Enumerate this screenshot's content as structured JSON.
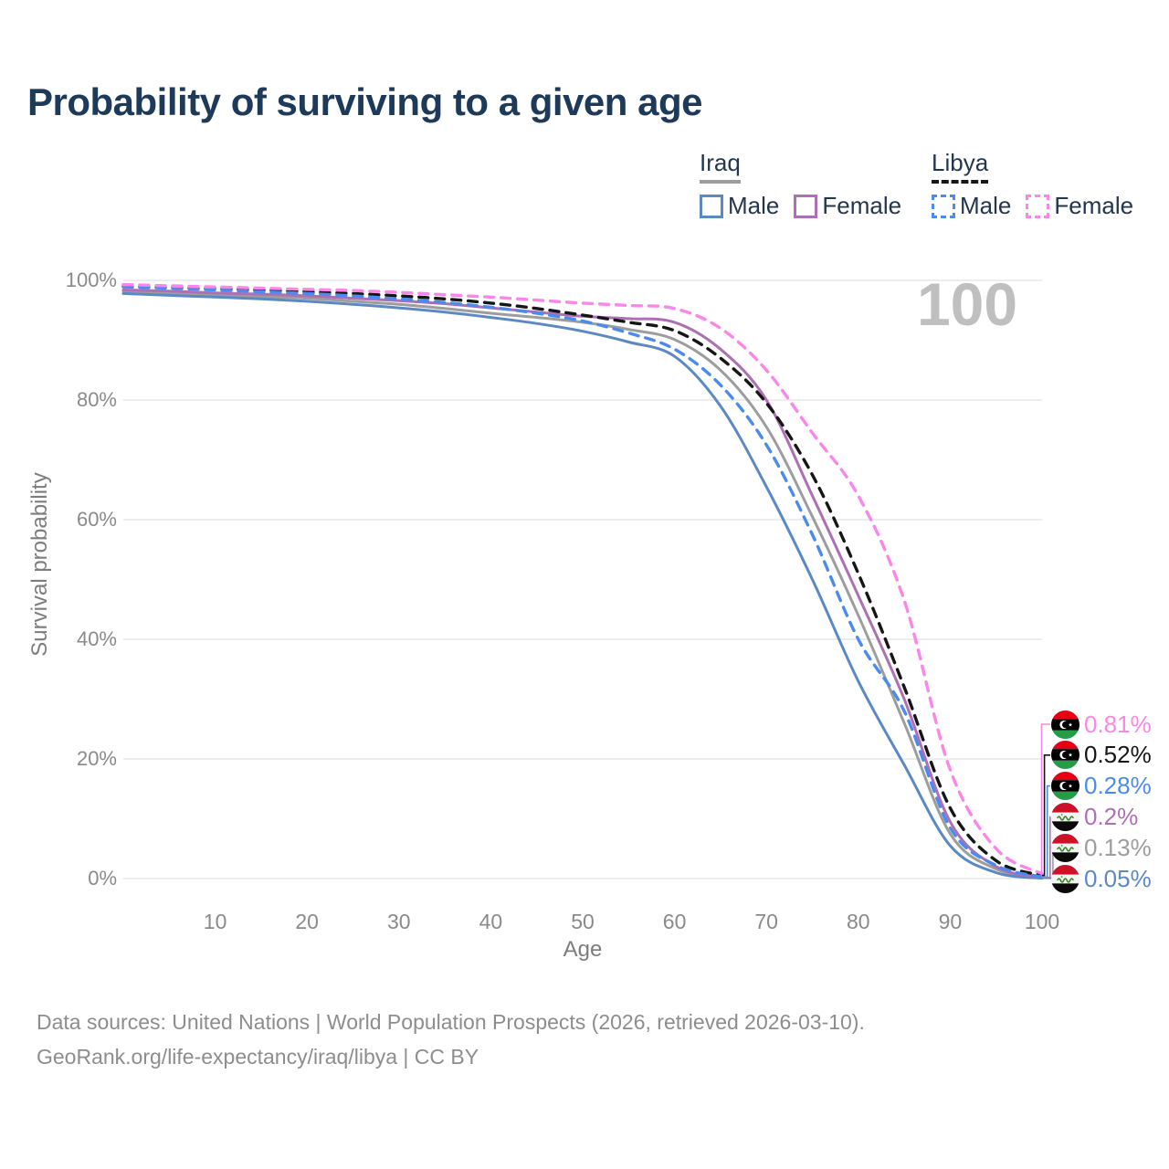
{
  "title": "Probability of surviving to a given age",
  "watermark": "100",
  "legend": {
    "groups": [
      {
        "country": "Iraq",
        "underline_style": "solid",
        "underline_color": "#9d9d9d",
        "items": [
          {
            "label": "Male",
            "color": "#5b89c4",
            "style": "solid"
          },
          {
            "label": "Female",
            "color": "#ae6fb4",
            "style": "solid"
          }
        ]
      },
      {
        "country": "Libya",
        "underline_style": "dashed",
        "underline_color": "#161616",
        "items": [
          {
            "label": "Male",
            "color": "#4b8bf0",
            "style": "dashed"
          },
          {
            "label": "Female",
            "color": "#fb86e9",
            "style": "dashed"
          }
        ]
      }
    ]
  },
  "y_axis": {
    "label": "Survival probability",
    "tick_values": [
      0,
      20,
      40,
      60,
      80,
      100
    ],
    "tick_labels": [
      "0%",
      "20%",
      "40%",
      "60%",
      "80%",
      "100%"
    ]
  },
  "x_axis": {
    "label": "Age",
    "tick_values": [
      10,
      20,
      30,
      40,
      50,
      60,
      70,
      80,
      90,
      100
    ],
    "tick_labels": [
      "10",
      "20",
      "30",
      "40",
      "50",
      "60",
      "70",
      "80",
      "90",
      "100"
    ]
  },
  "end_labels": [
    {
      "value": "0.81%",
      "flag": "libya",
      "color": "#fb86e9",
      "series": "Libya Female"
    },
    {
      "value": "0.52%",
      "flag": "libya",
      "color": "#161616",
      "series": "Libya Both sexes"
    },
    {
      "value": "0.28%",
      "flag": "libya",
      "color": "#4b8bf0",
      "series": "Libya Male"
    },
    {
      "value": "0.2%",
      "flag": "iraq",
      "color": "#ae6fb4",
      "series": "Iraq Female"
    },
    {
      "value": "0.13%",
      "flag": "iraq",
      "color": "#9d9d9d",
      "series": "Iraq Both sexes"
    },
    {
      "value": "0.05%",
      "flag": "iraq",
      "color": "#5b89c4",
      "series": "Iraq Male"
    }
  ],
  "footer": {
    "line1": "Data sources: United Nations | World Population Prospects (2026, retrieved 2026-03-10).",
    "line2": "GeoRank.org/life-expectancy/iraq/libya | CC BY"
  },
  "chart_data": {
    "type": "line",
    "title": "Probability of surviving to a given age",
    "xlabel": "Age",
    "ylabel": "Survival probability",
    "xlim": [
      0,
      100
    ],
    "ylim": [
      0,
      100
    ],
    "grid": "horizontal",
    "legend_position": "top-right",
    "x": [
      0,
      5,
      10,
      15,
      20,
      25,
      30,
      35,
      40,
      45,
      50,
      55,
      60,
      65,
      70,
      75,
      80,
      85,
      90,
      95,
      100
    ],
    "series": [
      {
        "name": "Iraq Both sexes",
        "color": "#9d9d9d",
        "dash": "solid",
        "end_label": "0.13%",
        "values": [
          98.1,
          97.9,
          97.6,
          97.3,
          97.0,
          96.5,
          96.0,
          95.3,
          94.5,
          93.8,
          93.0,
          91.8,
          90.1,
          85.0,
          75.5,
          60.5,
          44.0,
          26.0,
          7.5,
          1.6,
          0.13
        ]
      },
      {
        "name": "Iraq Male",
        "color": "#5b89c4",
        "dash": "solid",
        "end_label": "0.05%",
        "values": [
          97.8,
          97.5,
          97.2,
          96.9,
          96.5,
          96.0,
          95.4,
          94.7,
          93.8,
          92.8,
          91.5,
          89.7,
          87.3,
          79.0,
          65.5,
          50.0,
          33.0,
          19.0,
          5.5,
          1.0,
          0.05
        ]
      },
      {
        "name": "Iraq Female",
        "color": "#ae6fb4",
        "dash": "solid",
        "end_label": "0.2%",
        "values": [
          98.4,
          98.2,
          97.9,
          97.7,
          97.4,
          97.0,
          96.6,
          96.1,
          95.4,
          94.7,
          94.0,
          93.6,
          93.0,
          88.5,
          80.0,
          64.0,
          47.3,
          30.0,
          9.5,
          2.0,
          0.2
        ]
      },
      {
        "name": "Libya Both sexes",
        "color": "#161616",
        "dash": "dashed",
        "end_label": "0.52%",
        "values": [
          99.0,
          98.8,
          98.6,
          98.4,
          98.1,
          97.8,
          97.4,
          96.9,
          96.2,
          95.3,
          94.2,
          93.0,
          91.6,
          87.0,
          79.5,
          67.5,
          51.0,
          32.0,
          11.8,
          3.0,
          0.52
        ]
      },
      {
        "name": "Libya Male",
        "color": "#4b8bf0",
        "dash": "dashed",
        "end_label": "0.28%",
        "values": [
          98.9,
          98.7,
          98.4,
          98.1,
          97.8,
          97.4,
          96.9,
          96.3,
          95.5,
          94.5,
          93.2,
          91.2,
          88.5,
          82.5,
          72.5,
          57.5,
          40.0,
          28.0,
          8.5,
          2.2,
          0.28
        ]
      },
      {
        "name": "Libya Female",
        "color": "#fb86e9",
        "dash": "dashed",
        "end_label": "0.81%",
        "values": [
          99.3,
          99.1,
          98.9,
          98.7,
          98.5,
          98.3,
          98.0,
          97.6,
          97.2,
          96.7,
          96.2,
          95.8,
          95.3,
          92.0,
          85.0,
          74.5,
          64.0,
          46.5,
          18.2,
          5.0,
          0.81
        ]
      }
    ]
  }
}
